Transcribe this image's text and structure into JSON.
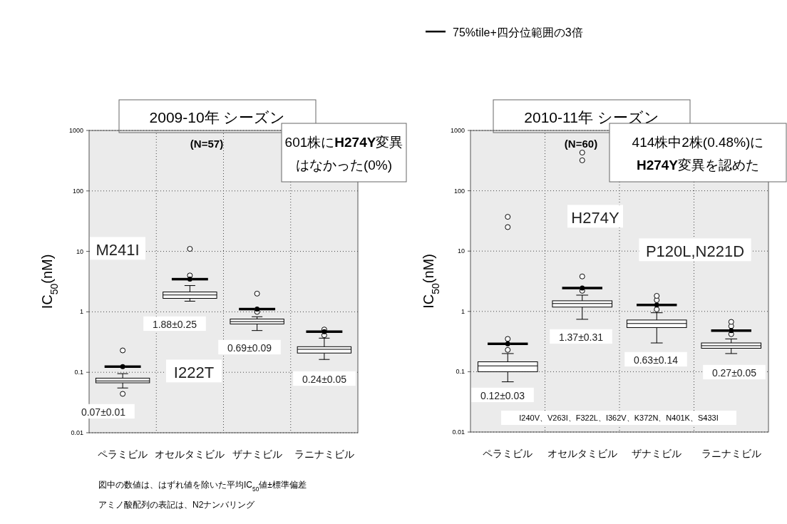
{
  "chart_data": [
    {
      "type": "box",
      "title": "2009-10年 シーズン",
      "subtitle": "(N=57)",
      "ylabel": "IC$_{50}$(nM)",
      "categories": [
        "ペラミビル",
        "オセルタミビル",
        "ザナミビル",
        "ラニナミビル"
      ],
      "log": true,
      "ylim": [
        0.01,
        1000
      ],
      "yticks": [
        0.01,
        0.1,
        1,
        10,
        100,
        1000
      ],
      "grid": true,
      "series": [
        {
          "type": "box",
          "color": "#000000",
          "boxes": [
            {
              "low": 0.055,
              "q1": 0.067,
              "median": 0.072,
              "q3": 0.08,
              "high": 0.095,
              "outliers": [
                0.044,
                0.23
              ]
            },
            {
              "low": 1.5,
              "q1": 1.67,
              "median": 1.9,
              "q3": 2.13,
              "high": 2.72,
              "outliers": [
                4,
                11
              ]
            },
            {
              "low": 0.49,
              "q1": 0.63,
              "median": 0.69,
              "q3": 0.76,
              "high": 0.83,
              "outliers": [
                1,
                2
              ]
            },
            {
              "low": 0.163,
              "q1": 0.208,
              "median": 0.24,
              "q3": 0.265,
              "high": 0.367,
              "outliers": [
                0.41,
                0.51
              ]
            }
          ]
        },
        {
          "type": "scatter",
          "color": "#000000",
          "x": [
            "ペラミビル",
            "オセルタミビル",
            "ザナミビル",
            "ラニナミビル"
          ],
          "values": [
            0.124,
            3.47,
            1.11,
            0.47
          ]
        }
      ],
      "annotations": [
        "601株に**H274Y**変異はなかった(0%)",
        "図中の数値は、はずれ値を除いた平均IC$_{50}$値±標準偏差",
        "アミノ酸配列の表記は、N2ナンバリング",
        "0.07±0.01",
        "1.88±0.25",
        "0.69±0.09",
        "0.24±0.05",
        "M241I",
        "I222T"
      ]
    },
    {
      "type": "box",
      "title": "2010-11年 シーズン",
      "subtitle": "(N=60)",
      "ylabel": "IC$_{50}$(nM)",
      "categories": [
        "ペラミビル",
        "オセルタミビル",
        "ザナミビル",
        "ラニナミビル"
      ],
      "log": true,
      "ylim": [
        0.01,
        1000
      ],
      "yticks": [
        0.01,
        0.1,
        1,
        10,
        100,
        1000
      ],
      "grid": true,
      "legend": "top",
      "series": [
        {
          "type": "box",
          "color": "#000000",
          "boxes": [
            {
              "low": 0.068,
              "q1": 0.1,
              "median": 0.125,
              "q3": 0.146,
              "high": 0.2,
              "outliers": [
                0.23,
                0.35,
                25,
                37
              ]
            },
            {
              "low": 0.74,
              "q1": 1.18,
              "median": 1.35,
              "q3": 1.5,
              "high": 1.86,
              "outliers": [
                2.2,
                3.8,
                320,
                430
              ]
            },
            {
              "low": 0.3,
              "q1": 0.54,
              "median": 0.63,
              "q3": 0.72,
              "high": 0.95,
              "outliers": [
                1.08,
                1.54,
                1.81
              ]
            },
            {
              "low": 0.2,
              "q1": 0.245,
              "median": 0.27,
              "q3": 0.3,
              "high": 0.35,
              "outliers": [
                0.42,
                0.57,
                0.67
              ]
            }
          ]
        },
        {
          "type": "scatter",
          "name": "75%tile+四分位範囲の3倍",
          "color": "#000000",
          "x": [
            "ペラミビル",
            "オセルタミビル",
            "ザナミビル",
            "ラニナミビル"
          ],
          "values": [
            0.29,
            2.44,
            1.28,
            0.48
          ]
        }
      ],
      "annotations": [
        "414株中2株(0.48%)に**H274Y**変異を認めた",
        "I240V、V263I、F322L、I362V、K372N、N401K、S433I",
        "0.12±0.03",
        "1.37±0.31",
        "0.63±0.14",
        "0.27±0.05",
        "H274Y",
        "P120L,N221D"
      ]
    }
  ]
}
